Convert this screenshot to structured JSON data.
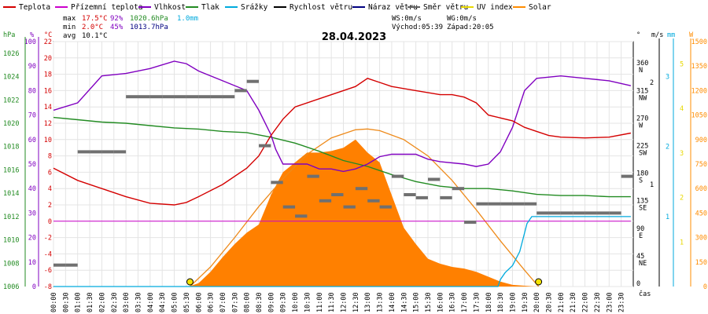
{
  "chart_data": {
    "type": "line",
    "title": "28.04.2023",
    "legend": [
      {
        "name": "Teplota",
        "color": "#d40000"
      },
      {
        "name": "Přízemní teplota",
        "color": "#cc00cc"
      },
      {
        "name": "Vlhkost",
        "color": "#8000c0"
      },
      {
        "name": "Tlak",
        "color": "#228b22"
      },
      {
        "name": "Srážky",
        "color": "#00aadd"
      },
      {
        "name": "Rychlost větru",
        "color": "#000000"
      },
      {
        "name": "Náraz větru",
        "color": "#000080"
      },
      {
        "name": "Směr větru",
        "color": "#606060"
      },
      {
        "name": "UV index",
        "color": "#e8d800"
      },
      {
        "name": "Solar",
        "color": "#ff8c00"
      }
    ],
    "stats": {
      "max": {
        "label": "max",
        "temp": "17.5°C",
        "hum": "92%",
        "press": "1020.6hPa",
        "rain": "1.0mm"
      },
      "min": {
        "label": "min",
        "temp": "2.0°C",
        "hum": "45%",
        "press": "1013.7hPa"
      },
      "avg": {
        "label": "avg",
        "temp": "10.1°C"
      }
    },
    "wind_info": {
      "ws": "WS:0m/s",
      "wg": "WG:0m/s",
      "sunrise": "Východ:05:39",
      "sunset": "Západ:20:05"
    },
    "axes": {
      "hpa": {
        "unit": "hPa",
        "ticks": [
          "1026",
          "1024",
          "1022",
          "1020",
          "1018",
          "1016",
          "1014",
          "1012",
          "1010",
          "1008",
          "1006"
        ]
      },
      "pct": {
        "unit": "%",
        "ticks": [
          "100",
          "90",
          "80",
          "70",
          "60",
          "50",
          "40",
          "30",
          "20",
          "10",
          "0"
        ]
      },
      "temp": {
        "unit": "°C",
        "ticks": [
          "22",
          "20",
          "18",
          "16",
          "14",
          "12",
          "10",
          "8",
          "6",
          "4",
          "2",
          "0",
          "-2",
          "-4",
          "-6",
          "-8"
        ]
      },
      "dir": {
        "unit": "°",
        "ticks": [
          {
            "deg": "360",
            "cd": "N",
            "v": 360
          },
          {
            "deg": "315",
            "cd": "NW",
            "v": 315
          },
          {
            "deg": "270",
            "cd": "W",
            "v": 270
          },
          {
            "deg": "225",
            "cd": "SW",
            "v": 225
          },
          {
            "deg": "180",
            "cd": "S",
            "v": 180
          },
          {
            "deg": "135",
            "cd": "SE",
            "v": 135
          },
          {
            "deg": "90",
            "cd": "E",
            "v": 90
          },
          {
            "deg": "45",
            "cd": "NE",
            "v": 45
          },
          {
            "deg": "0",
            "cd": "",
            "v": 0
          }
        ]
      },
      "ms": {
        "unit": "m/s",
        "ticks": [
          {
            "t": "2",
            "v": 2
          },
          {
            "t": "1",
            "v": 1
          }
        ]
      },
      "mm": {
        "unit": "mm",
        "ticks": [
          {
            "t": "3",
            "v": 3
          },
          {
            "t": "2",
            "v": 2
          },
          {
            "t": "1",
            "v": 1
          }
        ]
      },
      "w": {
        "unit": "W",
        "ticks": [
          {
            "t": "1500",
            "v": 1500
          },
          {
            "t": "1350",
            "v": 1350
          },
          {
            "t": "1200",
            "v": 1200
          },
          {
            "t": "1050",
            "v": 1050
          },
          {
            "t": "900",
            "v": 900
          },
          {
            "t": "750",
            "v": 750
          },
          {
            "t": "600",
            "v": 600
          },
          {
            "t": "450",
            "v": 450
          },
          {
            "t": "300",
            "v": 300
          },
          {
            "t": "150",
            "v": 150
          },
          {
            "t": "0",
            "v": 0
          }
        ]
      },
      "uv": {
        "ticks": [
          {
            "t": "5",
            "v": 5
          },
          {
            "t": "4",
            "v": 4
          },
          {
            "t": "3",
            "v": 3
          },
          {
            "t": "2",
            "v": 2
          },
          {
            "t": "1",
            "v": 1
          }
        ]
      },
      "x_unit": "čas",
      "x_ticks": [
        "00:00",
        "00:30",
        "01:00",
        "01:30",
        "02:00",
        "02:30",
        "03:00",
        "03:30",
        "04:00",
        "04:30",
        "05:00",
        "05:30",
        "06:00",
        "06:30",
        "07:00",
        "07:30",
        "08:00",
        "08:30",
        "09:00",
        "09:30",
        "10:00",
        "10:30",
        "11:00",
        "11:30",
        "12:00",
        "12:30",
        "13:00",
        "13:30",
        "14:00",
        "14:30",
        "15:00",
        "15:30",
        "16:00",
        "16:30",
        "17:00",
        "17:30",
        "18:00",
        "18:30",
        "19:00",
        "19:30",
        "20:00",
        "20:30",
        "21:00",
        "21:30",
        "22:00",
        "22:30",
        "23:00",
        "23:30"
      ],
      "temp_range": [
        -8,
        22
      ],
      "hpa_range": [
        1006,
        1027
      ],
      "pct_range": [
        0,
        100
      ],
      "dir_range": [
        0,
        400
      ],
      "w_range": [
        0,
        1500
      ],
      "mm_range": [
        0,
        3.5
      ],
      "uv_range": [
        0,
        5.5
      ]
    },
    "series": [
      {
        "name": "Teplota",
        "unit": "°C",
        "x": [
          0,
          1,
          2,
          3,
          4,
          5,
          5.5,
          6,
          7,
          8,
          8.5,
          9,
          9.5,
          10,
          11,
          12,
          12.5,
          13,
          13.5,
          14,
          15,
          16,
          16.5,
          17,
          17.5,
          18,
          19,
          19.5,
          20,
          20.5,
          21,
          22,
          23,
          23.9
        ],
        "values": [
          6.5,
          5,
          4,
          3,
          2.2,
          2,
          2.3,
          3,
          4.5,
          6.5,
          8,
          10.5,
          12.5,
          14,
          15,
          16,
          16.5,
          17.5,
          17,
          16.5,
          16,
          15.5,
          15.5,
          15.2,
          14.5,
          13,
          12.3,
          11.5,
          11,
          10.5,
          10.3,
          10.2,
          10.3,
          10.8
        ]
      },
      {
        "name": "Přízemní teplota",
        "unit": "°C",
        "x": [
          0,
          23.9
        ],
        "values": [
          0,
          0
        ]
      },
      {
        "name": "Vlhkost",
        "unit": "%",
        "x": [
          0,
          1,
          2,
          3,
          4,
          5,
          5.5,
          6,
          7,
          8,
          8.5,
          9,
          9.2,
          9.5,
          10,
          10.5,
          11,
          11.5,
          12,
          12.5,
          13,
          13.5,
          14,
          15,
          15.5,
          16,
          17,
          17.5,
          18,
          18.5,
          19,
          19.5,
          20,
          21,
          22,
          23,
          23.9
        ],
        "values": [
          72,
          75,
          86,
          87,
          89,
          92,
          91,
          88,
          84,
          80,
          72,
          62,
          56,
          50,
          50,
          50,
          48,
          48,
          47,
          48,
          50,
          53,
          54,
          54,
          52,
          51,
          50,
          49,
          50,
          55,
          65,
          80,
          85,
          86,
          85,
          84,
          82
        ]
      },
      {
        "name": "Tlak",
        "unit": "hPa",
        "x": [
          0,
          1,
          2,
          3,
          4,
          5,
          6,
          7,
          8,
          9,
          10,
          11,
          12,
          13,
          14,
          15,
          16,
          17,
          18,
          19,
          20,
          21,
          22,
          23,
          23.9
        ],
        "values": [
          1020.5,
          1020.3,
          1020.1,
          1020,
          1019.8,
          1019.6,
          1019.5,
          1019.3,
          1019.2,
          1018.8,
          1018.3,
          1017.6,
          1016.8,
          1016.3,
          1015.6,
          1015,
          1014.6,
          1014.4,
          1014.4,
          1014.2,
          1013.9,
          1013.8,
          1013.8,
          1013.7,
          1013.7
        ]
      },
      {
        "name": "Srážky",
        "unit": "mm",
        "x": [
          0,
          18.4,
          18.5,
          18.7,
          19,
          19.3,
          19.6,
          19.8,
          23.9
        ],
        "values": [
          0,
          0,
          0.1,
          0.2,
          0.3,
          0.5,
          0.9,
          1.0,
          1.0
        ]
      },
      {
        "name": "Rychlost větru",
        "unit": "m/s",
        "x": [
          0,
          23.9
        ],
        "values": [
          0,
          0
        ]
      },
      {
        "name": "Solar",
        "unit": "W/m²",
        "x": [
          5.6,
          6,
          6.5,
          7,
          7.5,
          8,
          8.5,
          9,
          9.5,
          10,
          10.5,
          11,
          11.5,
          12,
          12.5,
          13,
          13.5,
          14,
          14.5,
          15,
          15.5,
          16,
          16.5,
          17,
          17.5,
          18,
          18.5,
          19,
          19.5,
          20
        ],
        "values": [
          0,
          20,
          90,
          180,
          260,
          330,
          380,
          560,
          700,
          760,
          820,
          820,
          830,
          850,
          900,
          820,
          760,
          560,
          360,
          260,
          170,
          140,
          120,
          110,
          90,
          60,
          30,
          10,
          5,
          0
        ]
      },
      {
        "name": "Solar theoretical",
        "unit": "W/m²",
        "x": [
          5.65,
          6.5,
          7.5,
          8.5,
          9.5,
          10.5,
          11.5,
          12.5,
          13,
          13.5,
          14.5,
          15.5,
          16.5,
          17.5,
          18.5,
          19.5,
          20.08
        ],
        "values": [
          0,
          120,
          300,
          490,
          660,
          810,
          910,
          960,
          965,
          955,
          900,
          800,
          650,
          470,
          280,
          100,
          0
        ]
      },
      {
        "name": "Směr větru",
        "unit": "°",
        "x": [
          0,
          0.5,
          1,
          1.5,
          2,
          2.5,
          3,
          3.5,
          4,
          4.5,
          5,
          5.5,
          6,
          6.5,
          7,
          7.5,
          8,
          8.5,
          9,
          9.5,
          10,
          10.5,
          11,
          11.5,
          12,
          12.5,
          13,
          13.5,
          14,
          14.5,
          15,
          15.5,
          16,
          16.5,
          17,
          17.5,
          18,
          18.5,
          19,
          19.5,
          20,
          20.5,
          21,
          21.5,
          22,
          22.5,
          23,
          23.5
        ],
        "values": [
          35,
          35,
          220,
          220,
          220,
          220,
          310,
          310,
          310,
          310,
          310,
          310,
          310,
          310,
          310,
          320,
          335,
          230,
          170,
          130,
          115,
          180,
          140,
          150,
          130,
          160,
          140,
          130,
          180,
          150,
          145,
          175,
          145,
          160,
          105,
          135,
          135,
          135,
          135,
          135,
          120,
          120,
          120,
          120,
          120,
          120,
          120,
          180
        ]
      }
    ],
    "sun_markers": {
      "sunrise_hour": 5.65,
      "sunset_hour": 20.08
    },
    "grid": true
  }
}
